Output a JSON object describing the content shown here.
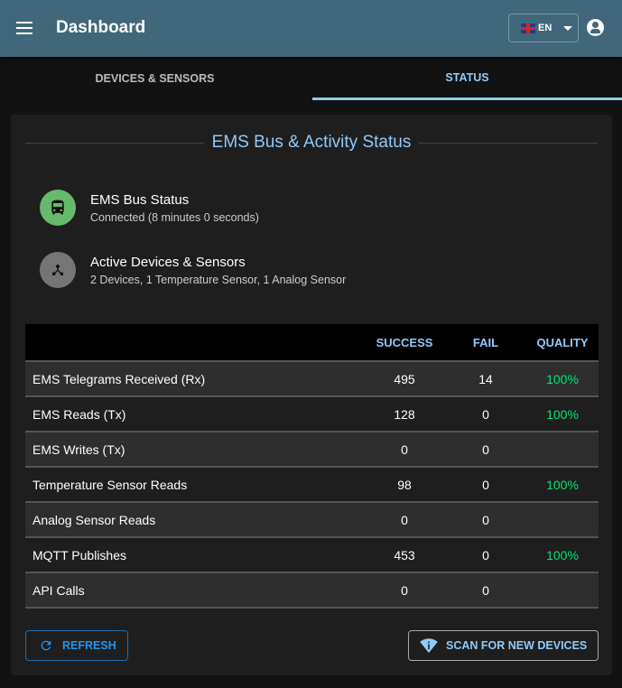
{
  "header": {
    "title": "Dashboard",
    "language": "EN",
    "icons": [
      "menu-icon",
      "uk-flag-icon",
      "account-icon"
    ]
  },
  "tabs": [
    {
      "label": "DEVICES & SENSORS",
      "active": false
    },
    {
      "label": "STATUS",
      "active": true
    }
  ],
  "card": {
    "title": "EMS Bus & Activity Status",
    "items": [
      {
        "name": "EMS Bus Status",
        "detail": "Connected (8 minutes 0 seconds)",
        "icon": "bus-icon",
        "color": "#66bb6a"
      },
      {
        "name": "Active Devices & Sensors",
        "detail": "2 Devices, 1 Temperature Sensor, 1 Analog Sensor",
        "icon": "device-hub-icon",
        "color": "#757575"
      }
    ],
    "table": {
      "headers": [
        "",
        "SUCCESS",
        "FAIL",
        "QUALITY"
      ],
      "rows": [
        [
          "EMS Telegrams Received (Rx)",
          "495",
          "14",
          "100%"
        ],
        [
          "EMS Reads (Tx)",
          "128",
          "0",
          "100%"
        ],
        [
          "EMS Writes (Tx)",
          "0",
          "0",
          ""
        ],
        [
          "Temperature Sensor Reads",
          "98",
          "0",
          "100%"
        ],
        [
          "Analog Sensor Reads",
          "0",
          "0",
          ""
        ],
        [
          "MQTT Publishes",
          "453",
          "0",
          "100%"
        ],
        [
          "API Calls",
          "0",
          "0",
          ""
        ]
      ]
    },
    "buttons": {
      "refresh": "REFRESH",
      "scan": "SCAN FOR NEW DEVICES"
    }
  },
  "colors": {
    "header": "#41687a",
    "accent": "#90caf9",
    "quality": "#00e676"
  }
}
